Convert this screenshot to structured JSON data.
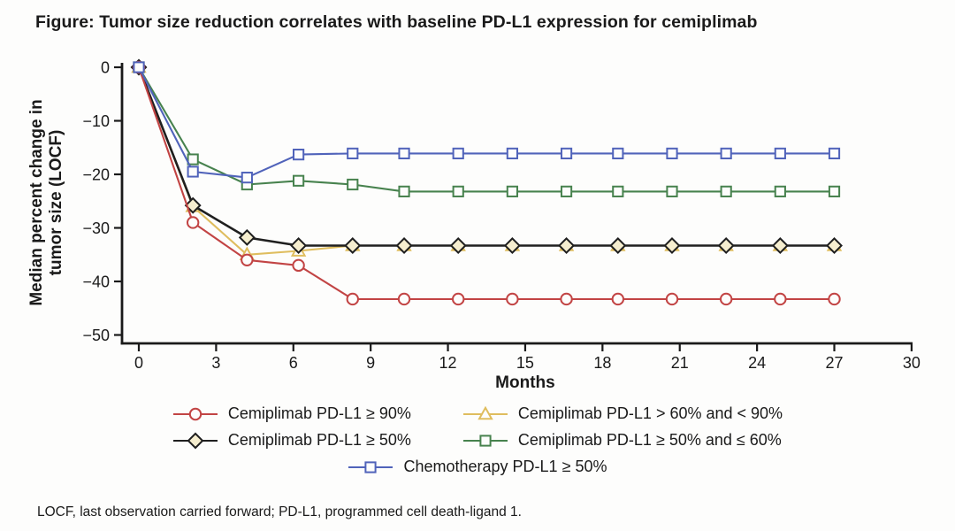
{
  "title": "Figure: Tumor size reduction correlates with baseline PD-L1 expression for cemiplimab",
  "footnote": "LOCF, last observation carried forward; PD-L1, programmed cell death-ligand 1.",
  "colors": {
    "axis": "#1a1a1a",
    "background": "#fdfdfc"
  },
  "chart_data": {
    "type": "line",
    "title": "Figure: Tumor size reduction correlates with baseline PD-L1 expression for cemiplimab",
    "xlabel": "Months",
    "ylabel": "Median percent change in tumor size (LOCF)",
    "ylabel_lines": [
      "Median percent change in",
      "tumor size (LOCF)"
    ],
    "xlim": [
      0,
      30
    ],
    "ylim": [
      -50,
      0
    ],
    "xticks": [
      0,
      3,
      6,
      9,
      12,
      15,
      18,
      21,
      24,
      27,
      30
    ],
    "yticks": [
      0,
      -10,
      -20,
      -30,
      -40,
      -50
    ],
    "grid": false,
    "legend_position": "bottom",
    "x": [
      0,
      2.1,
      4.2,
      6.2,
      8.3,
      10.3,
      12.4,
      14.5,
      16.6,
      18.6,
      20.7,
      22.8,
      24.9,
      27
    ],
    "series": [
      {
        "name": "Cemiplimab PD-L1 ≥ 90%",
        "marker": "circle",
        "color": "#c24444",
        "values": [
          0,
          -29,
          -36,
          -37,
          -43.3,
          -43.3,
          -43.3,
          -43.3,
          -43.3,
          -43.3,
          -43.3,
          -43.3,
          -43.3,
          -43.3
        ]
      },
      {
        "name": "Cemiplimab PD-L1 > 60% and < 90%",
        "marker": "triangle",
        "color": "#dfbd5e",
        "values": [
          0,
          -26,
          -35,
          -34.3,
          -33.3,
          -33.3,
          -33.3,
          -33.3,
          -33.3,
          -33.3,
          -33.3,
          -33.3,
          -33.3,
          -33.3
        ]
      },
      {
        "name": "Cemiplimab PD-L1 ≥ 50%",
        "marker": "diamond",
        "color": "#1f1f1f",
        "marker_fill": "#f6eecf",
        "values": [
          0,
          -25.8,
          -31.8,
          -33.3,
          -33.3,
          -33.3,
          -33.3,
          -33.3,
          -33.3,
          -33.3,
          -33.3,
          -33.3,
          -33.3,
          -33.3
        ]
      },
      {
        "name": "Cemiplimab PD-L1 ≥ 50% and ≤ 60%",
        "marker": "square",
        "color": "#47824e",
        "values": [
          0,
          -17.2,
          -21.9,
          -21.2,
          -21.9,
          -23.2,
          -23.2,
          -23.2,
          -23.2,
          -23.2,
          -23.2,
          -23.2,
          -23.2,
          -23.2
        ]
      },
      {
        "name": "Chemotherapy PD-L1 ≥ 50%",
        "marker": "square",
        "color": "#5063ba",
        "values": [
          0,
          -19.5,
          -20.6,
          -16.3,
          -16.1,
          -16.1,
          -16.1,
          -16.1,
          -16.1,
          -16.1,
          -16.1,
          -16.1,
          -16.1,
          -16.1
        ]
      }
    ],
    "draw_order": [
      1,
      3,
      2,
      0,
      4
    ],
    "legend_rows": [
      [
        0,
        1
      ],
      [
        2,
        3
      ],
      [
        4
      ]
    ]
  }
}
